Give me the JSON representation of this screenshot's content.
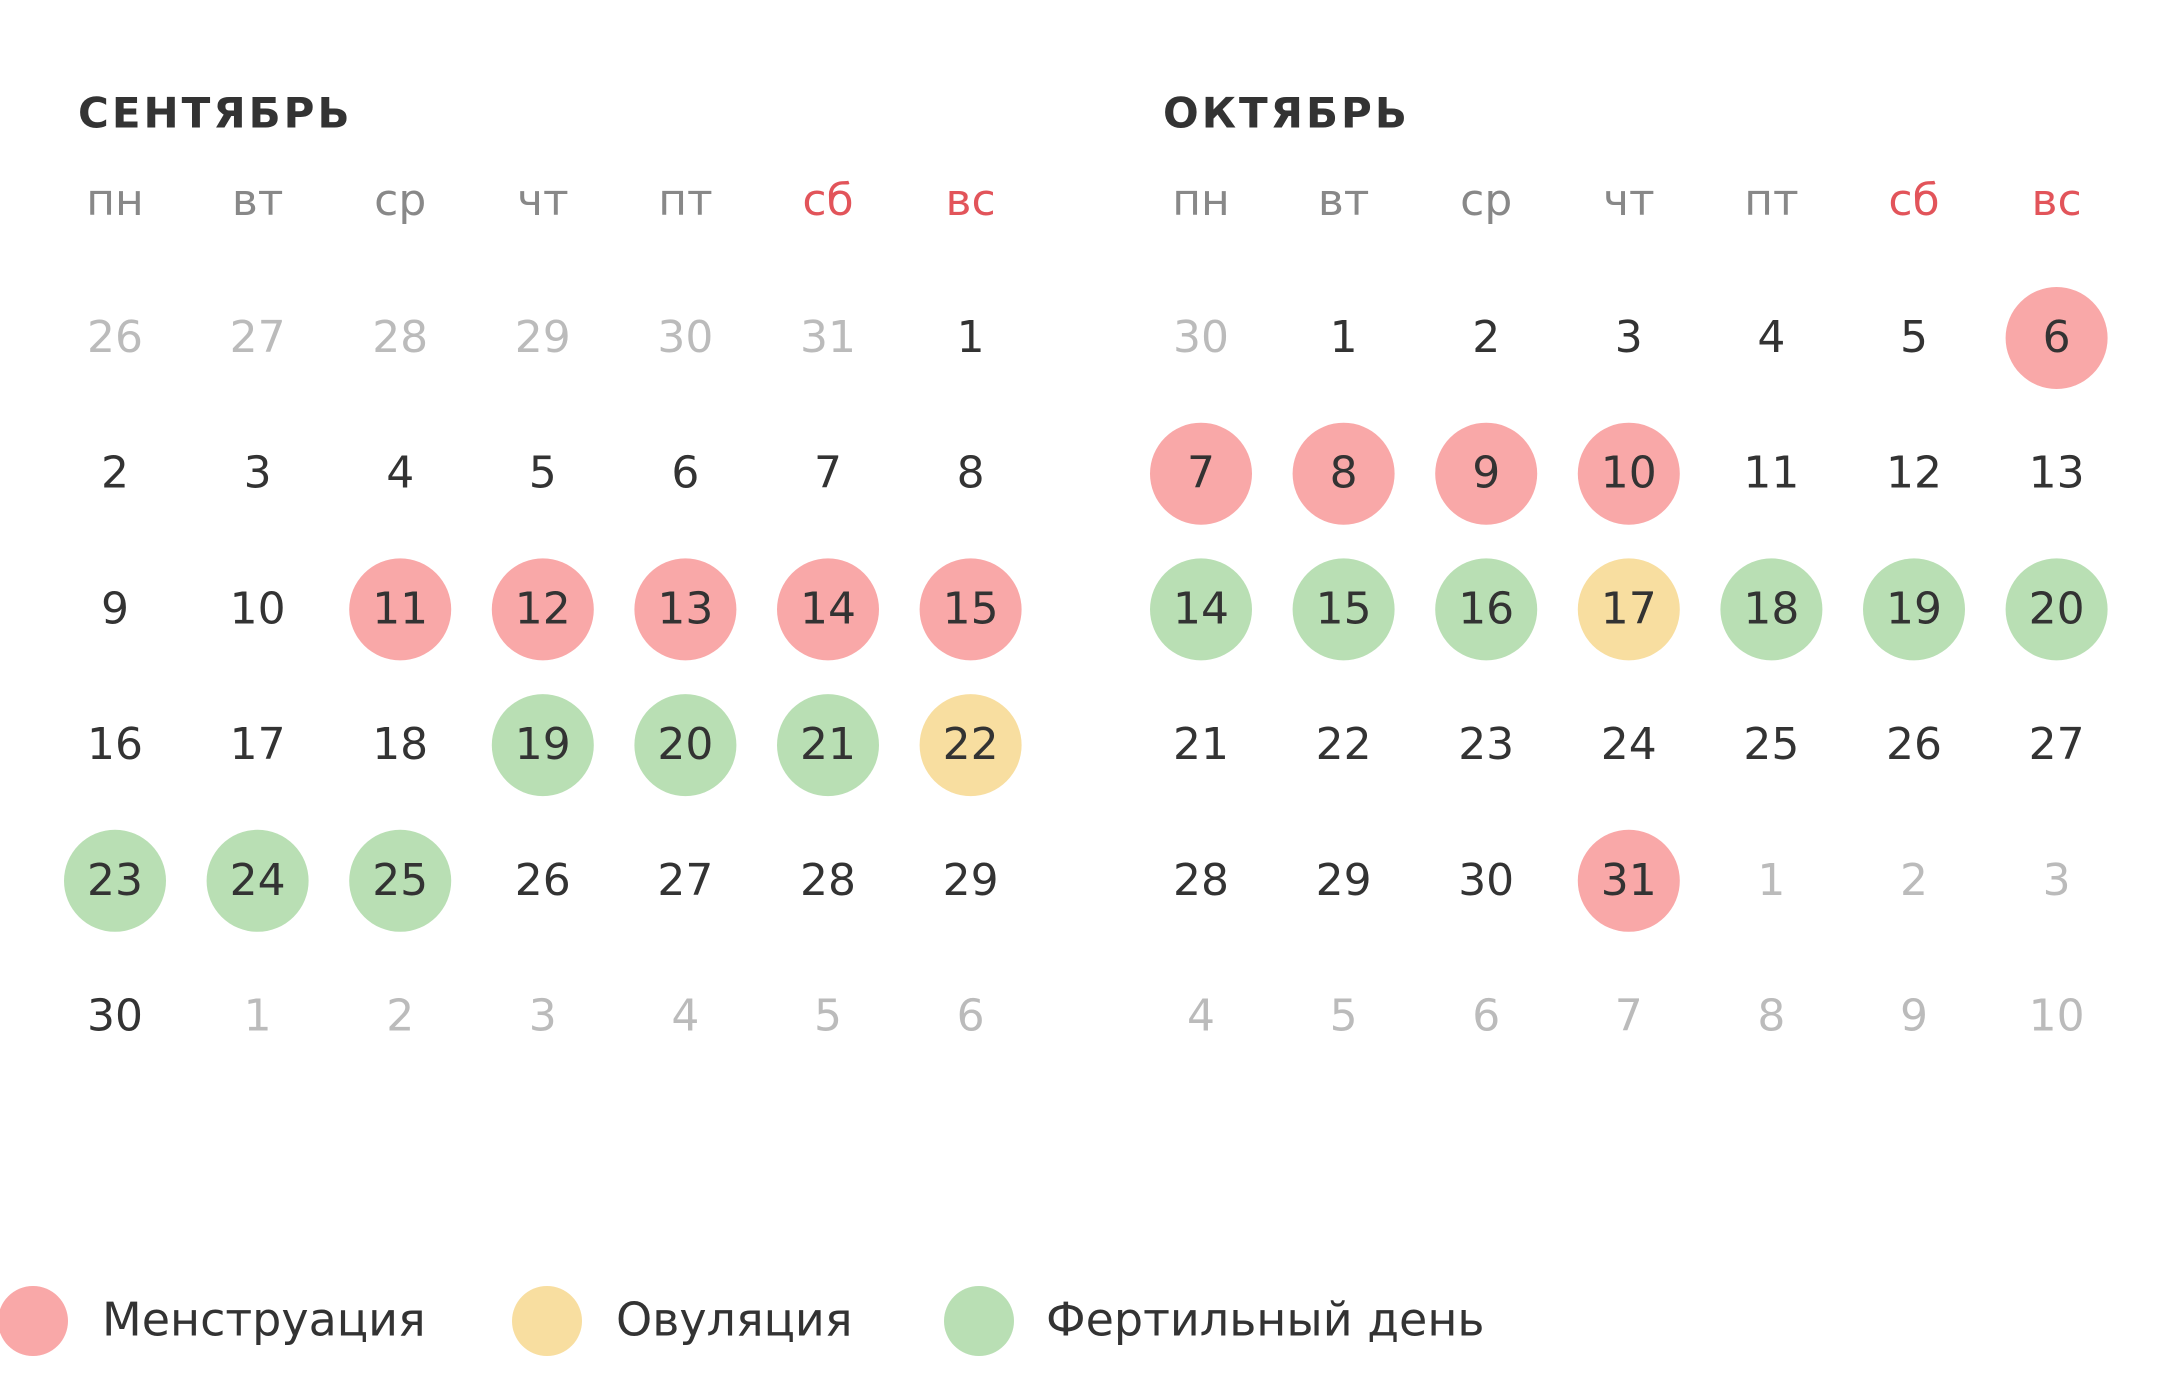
{
  "colors": {
    "text": "#333333",
    "muted": "#bbbbbb",
    "weekday": "#888888",
    "weekend": "#e2545a"
  },
  "months": [
    {
      "title": "СЕНТЯБРЬ",
      "weekdays": [
        "пн",
        "вт",
        "ср",
        "чт",
        "пт",
        "сб",
        "вс"
      ],
      "weeks": [
        [
          {
            "day": 26,
            "muted": true
          },
          {
            "day": 27,
            "muted": true
          },
          {
            "day": 28,
            "muted": true
          },
          {
            "day": 29,
            "muted": true
          },
          {
            "day": 30,
            "muted": true
          },
          {
            "day": 31,
            "muted": true
          },
          {
            "day": 1
          }
        ],
        [
          {
            "day": 2
          },
          {
            "day": 3
          },
          {
            "day": 4
          },
          {
            "day": 5
          },
          {
            "day": 6
          },
          {
            "day": 7
          },
          {
            "day": 8
          }
        ],
        [
          {
            "day": 9
          },
          {
            "day": 10
          },
          {
            "day": 11,
            "fill": "#f9a8a8"
          },
          {
            "day": 12,
            "fill": "#f9a8a8"
          },
          {
            "day": 13,
            "fill": "#f9a8a8"
          },
          {
            "day": 14,
            "fill": "#f9a8a8"
          },
          {
            "day": 15,
            "fill": "#f9a8a8"
          }
        ],
        [
          {
            "day": 16
          },
          {
            "day": 17
          },
          {
            "day": 18
          },
          {
            "day": 19,
            "fill": "#b9dfb4"
          },
          {
            "day": 20,
            "fill": "#b9dfb4"
          },
          {
            "day": 21,
            "fill": "#b9dfb4"
          },
          {
            "day": 22,
            "fill": "#f8dea0"
          }
        ],
        [
          {
            "day": 23,
            "fill": "#b9dfb4"
          },
          {
            "day": 24,
            "fill": "#b9dfb4"
          },
          {
            "day": 25,
            "fill": "#b9dfb4"
          },
          {
            "day": 26
          },
          {
            "day": 27
          },
          {
            "day": 28
          },
          {
            "day": 29
          }
        ],
        [
          {
            "day": 30
          },
          {
            "day": 1,
            "muted": true
          },
          {
            "day": 2,
            "muted": true
          },
          {
            "day": 3,
            "muted": true
          },
          {
            "day": 4,
            "muted": true
          },
          {
            "day": 5,
            "muted": true
          },
          {
            "day": 6,
            "muted": true
          }
        ]
      ]
    },
    {
      "title": "ОКТЯБРЬ",
      "weekdays": [
        "пн",
        "вт",
        "ср",
        "чт",
        "пт",
        "сб",
        "вс"
      ],
      "weeks": [
        [
          {
            "day": 30,
            "muted": true
          },
          {
            "day": 1
          },
          {
            "day": 2
          },
          {
            "day": 3
          },
          {
            "day": 4
          },
          {
            "day": 5
          },
          {
            "day": 6,
            "fill": "#f9a8a8"
          }
        ],
        [
          {
            "day": 7,
            "fill": "#f9a8a8"
          },
          {
            "day": 8,
            "fill": "#f9a8a8"
          },
          {
            "day": 9,
            "fill": "#f9a8a8"
          },
          {
            "day": 10,
            "fill": "#f9a8a8"
          },
          {
            "day": 11
          },
          {
            "day": 12
          },
          {
            "day": 13
          }
        ],
        [
          {
            "day": 14,
            "fill": "#b9dfb4"
          },
          {
            "day": 15,
            "fill": "#b9dfb4"
          },
          {
            "day": 16,
            "fill": "#b9dfb4"
          },
          {
            "day": 17,
            "fill": "#f8dea0"
          },
          {
            "day": 18,
            "fill": "#b9dfb4"
          },
          {
            "day": 19,
            "fill": "#b9dfb4"
          },
          {
            "day": 20,
            "fill": "#b9dfb4"
          }
        ],
        [
          {
            "day": 21
          },
          {
            "day": 22
          },
          {
            "day": 23
          },
          {
            "day": 24
          },
          {
            "day": 25
          },
          {
            "day": 26
          },
          {
            "day": 27
          }
        ],
        [
          {
            "day": 28
          },
          {
            "day": 29
          },
          {
            "day": 30
          },
          {
            "day": 31,
            "fill": "#f9a8a8"
          },
          {
            "day": 1,
            "muted": true
          },
          {
            "day": 2,
            "muted": true
          },
          {
            "day": 3,
            "muted": true
          }
        ],
        [
          {
            "day": 4,
            "muted": true
          },
          {
            "day": 5,
            "muted": true
          },
          {
            "day": 6,
            "muted": true
          },
          {
            "day": 7,
            "muted": true
          },
          {
            "day": 8,
            "muted": true
          },
          {
            "day": 9,
            "muted": true
          },
          {
            "day": 10,
            "muted": true
          }
        ]
      ]
    }
  ],
  "legend": [
    {
      "label": "Менструация",
      "color": "#f9a8a8"
    },
    {
      "label": "Овуляция",
      "color": "#f8dea0"
    },
    {
      "label": "Фертильный день",
      "color": "#b9dfb4"
    }
  ]
}
